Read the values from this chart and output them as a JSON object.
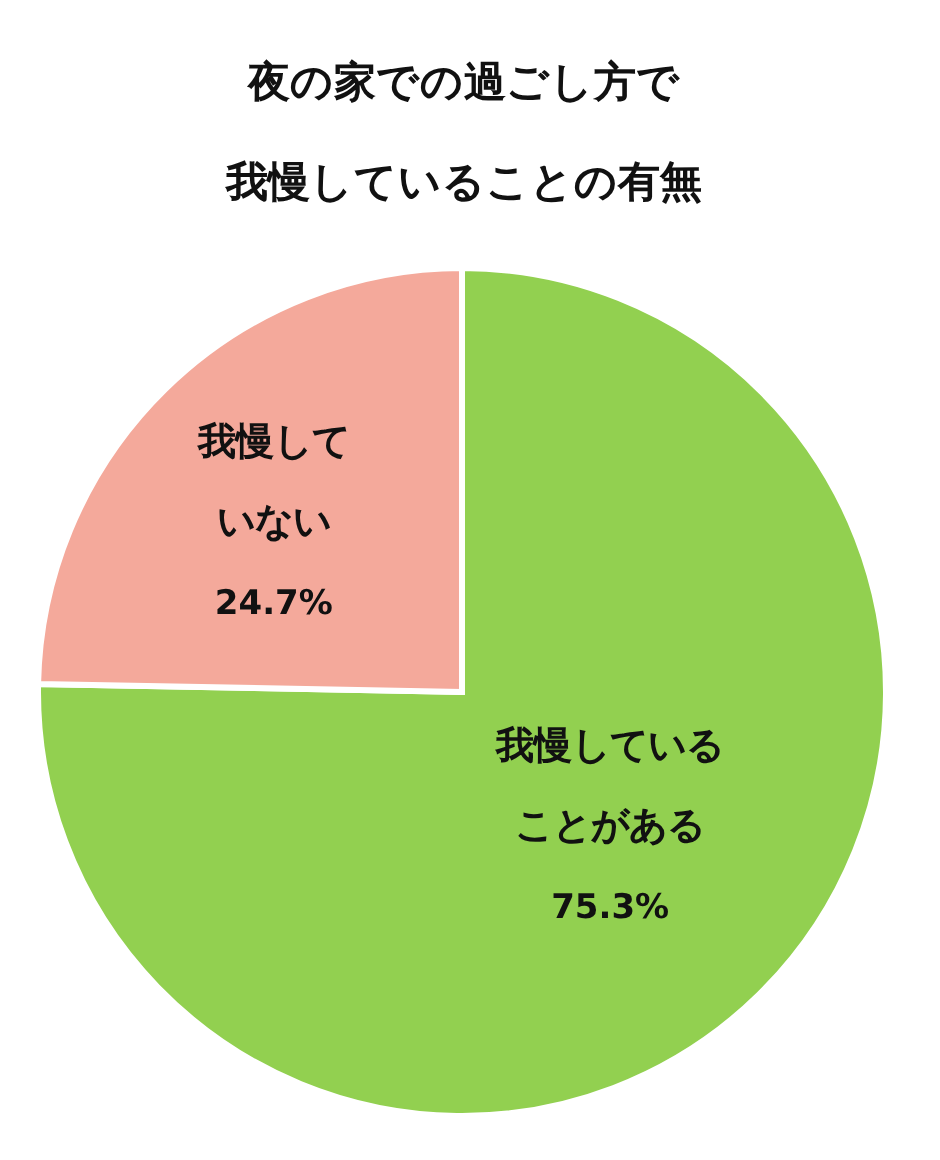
{
  "chart_data": {
    "type": "pie",
    "title": "夜の家での過ごし方で我慢していることの有無",
    "categories": [
      "我慢していることがある",
      "我慢していない"
    ],
    "values": [
      75.3,
      24.7
    ],
    "value_labels": [
      "75.3%",
      "24.7%"
    ],
    "colors": [
      "#92d050",
      "#f4a99b"
    ]
  }
}
